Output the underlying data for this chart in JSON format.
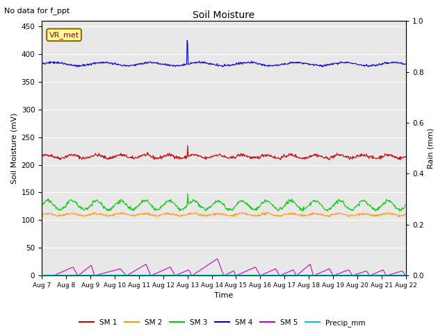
{
  "title": "Soil Moisture",
  "suptitle": "No data for f_ppt",
  "ylabel_left": "Soil Moisture (mV)",
  "ylabel_right": "Rain (mm)",
  "xlabel": "Time",
  "ylim_left": [
    0,
    460
  ],
  "ylim_right": [
    0,
    1.0
  ],
  "xtick_labels": [
    "Aug 7",
    "Aug 8",
    "Aug 9",
    "Aug 10",
    "Aug 11",
    "Aug 12",
    "Aug 13",
    "Aug 14",
    "Aug 15",
    "Aug 16",
    "Aug 17",
    "Aug 18",
    "Aug 19",
    "Aug 20",
    "Aug 21",
    "Aug 22"
  ],
  "sm1_color": "#cc0000",
  "sm2_color": "#ff9900",
  "sm3_color": "#00cc00",
  "sm4_color": "#0000cc",
  "sm5_color": "#cc00cc",
  "precip_color": "#00cccc",
  "vr_met_box_color": "#ffff99",
  "vr_met_text_color": "#990000",
  "vr_met_edge_color": "#996600",
  "background_color": "#e8e8e8",
  "legend_entries": [
    "SM 1",
    "SM 2",
    "SM 3",
    "SM 4",
    "SM 5",
    "Precip_mm"
  ],
  "n_points": 720,
  "sm1_base": 215,
  "sm2_base": 110,
  "sm3_base": 127,
  "sm4_base": 382,
  "sm1_amp": 3,
  "sm2_amp": 2,
  "sm3_amp": 8,
  "sm4_amp": 3,
  "sm1_period": 1.0,
  "sm2_period": 1.0,
  "sm3_period": 1.0,
  "sm4_period": 2.0,
  "spike_day": 6.0,
  "sm1_spike": 235,
  "sm3_spike": 148,
  "sm4_spike": 425
}
